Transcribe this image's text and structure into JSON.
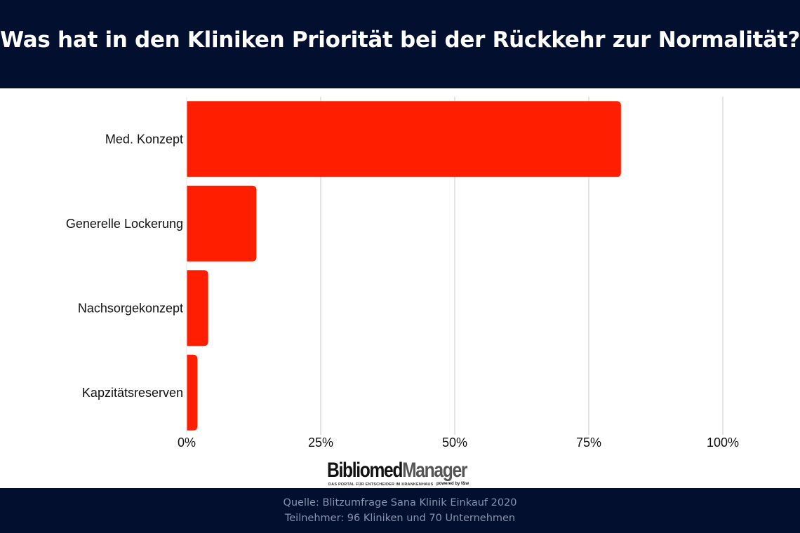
{
  "header": {
    "title": "Was hat in den Kliniken Priorität bei der Rückkehr zur Normalität?"
  },
  "chart_data": {
    "type": "bar",
    "orientation": "horizontal",
    "title": "Was hat in den Kliniken Priorität bei der Rückkehr zur Normalität?",
    "categories": [
      "Med. Konzept",
      "Generelle Lockerung",
      "Nachsorgekonzept",
      "Kapzitätsreserven"
    ],
    "values": [
      81,
      13,
      4,
      2
    ],
    "xlim": [
      0,
      100
    ],
    "ticks": [
      0,
      25,
      50,
      75,
      100
    ],
    "tick_labels": [
      "0%",
      "25%",
      "50%",
      "75%",
      "100%"
    ],
    "grid": "vertical",
    "bar_color": "#ff1e00",
    "grid_color": "#c8c8c8"
  },
  "logo": {
    "name_part1": "Bibliomed",
    "name_part2": "Manager",
    "tagline": "DAS PORTAL FÜR ENTSCHEIDER IM KRANKENHAUS",
    "powered": "powered by f&w"
  },
  "footer": {
    "source": "Quelle: Blitzumfrage Sana Klinik Einkauf 2020",
    "participants": "Teilnehmer: 96 Kliniken und 70 Unternehmen"
  },
  "colors": {
    "header_bg": "#020f2f",
    "footer_bg": "#020f2f",
    "footer_text": "#8a93ad"
  }
}
